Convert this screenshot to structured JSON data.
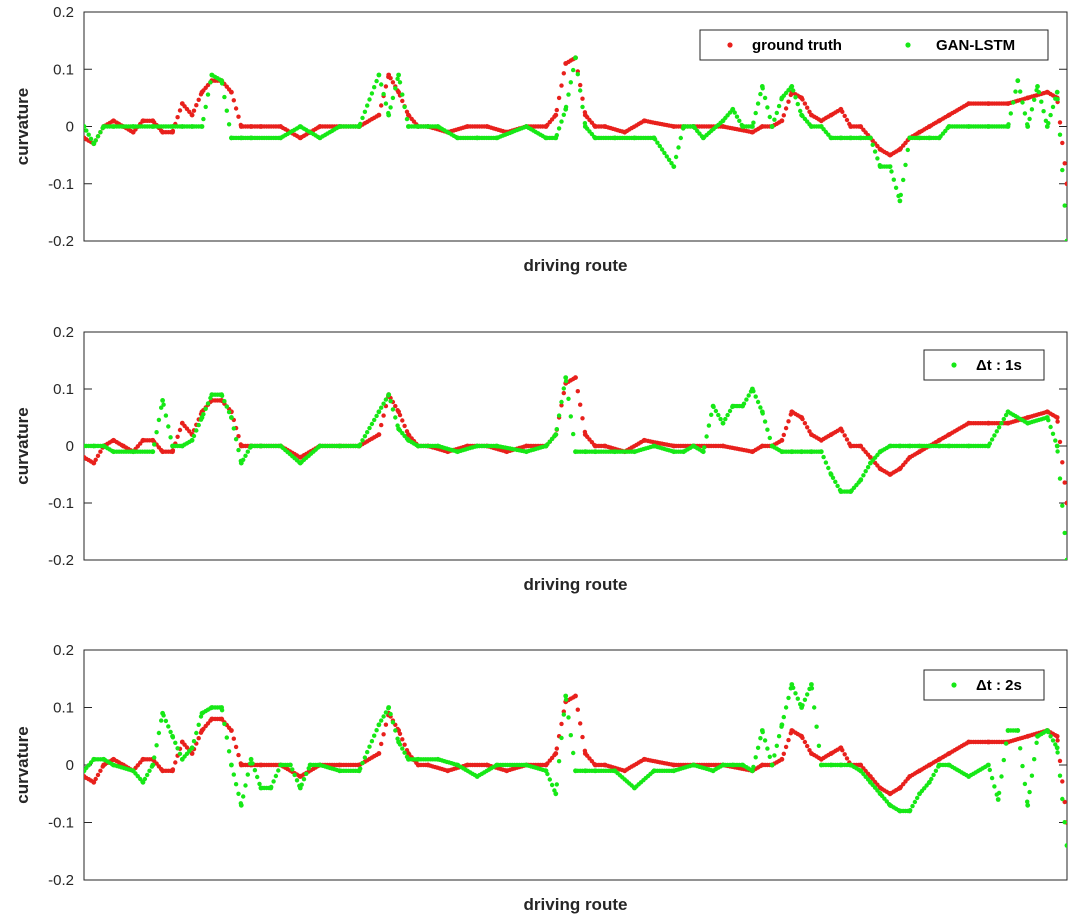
{
  "colors": {
    "ground_truth": "#e8201c",
    "prediction": "#16e816",
    "axis": "#262626"
  },
  "chart_data": [
    {
      "type": "scatter",
      "xlabel": "driving route",
      "ylabel": "curvature",
      "xlim": [
        0,
        1
      ],
      "ylim": [
        -0.2,
        0.2
      ],
      "yticks": [
        "0.2",
        "0.1",
        "0",
        "-0.1",
        "-0.2"
      ],
      "grid": false,
      "legend_position": "top-right",
      "series": [
        {
          "name": "ground truth",
          "color": "#e8201c",
          "x": [
            0.0,
            0.01,
            0.02,
            0.03,
            0.04,
            0.05,
            0.06,
            0.07,
            0.08,
            0.09,
            0.1,
            0.11,
            0.12,
            0.13,
            0.14,
            0.15,
            0.16,
            0.17,
            0.18,
            0.2,
            0.22,
            0.24,
            0.26,
            0.28,
            0.3,
            0.31,
            0.32,
            0.33,
            0.34,
            0.35,
            0.37,
            0.39,
            0.41,
            0.43,
            0.45,
            0.47,
            0.48,
            0.49,
            0.5,
            0.51,
            0.52,
            0.53,
            0.55,
            0.57,
            0.6,
            0.62,
            0.65,
            0.68,
            0.69,
            0.7,
            0.71,
            0.72,
            0.73,
            0.74,
            0.75,
            0.76,
            0.77,
            0.78,
            0.79,
            0.8,
            0.81,
            0.82,
            0.83,
            0.84,
            0.85,
            0.86,
            0.87,
            0.88,
            0.9,
            0.92,
            0.94,
            0.96,
            0.98,
            0.99,
            1.0
          ],
          "y": [
            -0.02,
            -0.03,
            0.0,
            0.01,
            0.0,
            -0.01,
            0.01,
            0.01,
            -0.01,
            -0.01,
            0.04,
            0.02,
            0.06,
            0.08,
            0.08,
            0.06,
            0.0,
            0.0,
            0.0,
            0.0,
            -0.02,
            0.0,
            0.0,
            0.0,
            0.02,
            0.09,
            0.06,
            0.02,
            0.0,
            0.0,
            -0.01,
            0.0,
            0.0,
            -0.01,
            0.0,
            0.0,
            0.02,
            0.11,
            0.12,
            0.02,
            0.0,
            0.0,
            -0.01,
            0.01,
            0.0,
            0.0,
            0.0,
            -0.01,
            0.0,
            0.0,
            0.01,
            0.06,
            0.05,
            0.02,
            0.01,
            0.02,
            0.03,
            0.0,
            0.0,
            -0.02,
            -0.04,
            -0.05,
            -0.04,
            -0.02,
            -0.01,
            0.0,
            0.01,
            0.02,
            0.04,
            0.04,
            0.04,
            0.05,
            0.06,
            0.05,
            -0.1
          ]
        },
        {
          "name": "GAN-LSTM",
          "color": "#16e816",
          "x": [
            0.0,
            0.01,
            0.02,
            0.03,
            0.05,
            0.07,
            0.09,
            0.1,
            0.11,
            0.12,
            0.13,
            0.14,
            0.15,
            0.16,
            0.17,
            0.2,
            0.22,
            0.24,
            0.26,
            0.28,
            0.3,
            0.31,
            0.32,
            0.33,
            0.34,
            0.35,
            0.36,
            0.38,
            0.4,
            0.42,
            0.45,
            0.47,
            0.48,
            0.49,
            0.5,
            0.51,
            0.52,
            0.54,
            0.56,
            0.58,
            0.6,
            0.61,
            0.62,
            0.63,
            0.65,
            0.66,
            0.67,
            0.68,
            0.69,
            0.7,
            0.71,
            0.72,
            0.73,
            0.74,
            0.75,
            0.76,
            0.77,
            0.78,
            0.79,
            0.8,
            0.81,
            0.82,
            0.83,
            0.84,
            0.85,
            0.86,
            0.87,
            0.88,
            0.9,
            0.92,
            0.94,
            0.95,
            0.96,
            0.97,
            0.98,
            0.99,
            1.0
          ],
          "y": [
            0.0,
            -0.03,
            0.0,
            0.0,
            0.0,
            0.0,
            0.0,
            0.0,
            0.0,
            0.0,
            0.09,
            0.08,
            -0.02,
            -0.02,
            -0.02,
            -0.02,
            0.0,
            -0.02,
            0.0,
            0.0,
            0.09,
            0.02,
            0.09,
            0.0,
            0.0,
            0.0,
            0.0,
            -0.02,
            -0.02,
            -0.02,
            0.0,
            -0.02,
            -0.02,
            0.03,
            0.12,
            0.0,
            -0.02,
            -0.02,
            -0.02,
            -0.02,
            -0.07,
            0.0,
            0.0,
            -0.02,
            0.01,
            0.03,
            0.0,
            0.0,
            0.07,
            0.0,
            0.05,
            0.07,
            0.02,
            0.0,
            0.0,
            -0.02,
            -0.02,
            -0.02,
            -0.02,
            -0.02,
            -0.07,
            -0.07,
            -0.13,
            -0.02,
            -0.02,
            -0.02,
            -0.02,
            0.0,
            0.0,
            0.0,
            0.0,
            0.08,
            0.0,
            0.07,
            0.0,
            0.06,
            -0.2
          ]
        }
      ]
    },
    {
      "type": "scatter",
      "xlabel": "driving route",
      "ylabel": "curvature",
      "xlim": [
        0,
        1
      ],
      "ylim": [
        -0.2,
        0.2
      ],
      "yticks": [
        "0.2",
        "0.1",
        "0",
        "-0.1",
        "-0.2"
      ],
      "grid": false,
      "legend_position": "top-right",
      "series": [
        {
          "name": "",
          "color": "#e8201c",
          "x": [
            0.0,
            0.01,
            0.02,
            0.03,
            0.04,
            0.05,
            0.06,
            0.07,
            0.08,
            0.09,
            0.1,
            0.11,
            0.12,
            0.13,
            0.14,
            0.15,
            0.16,
            0.17,
            0.18,
            0.2,
            0.22,
            0.24,
            0.26,
            0.28,
            0.3,
            0.31,
            0.32,
            0.33,
            0.34,
            0.35,
            0.37,
            0.39,
            0.41,
            0.43,
            0.45,
            0.47,
            0.48,
            0.49,
            0.5,
            0.51,
            0.52,
            0.53,
            0.55,
            0.57,
            0.6,
            0.62,
            0.65,
            0.68,
            0.69,
            0.7,
            0.71,
            0.72,
            0.73,
            0.74,
            0.75,
            0.76,
            0.77,
            0.78,
            0.79,
            0.8,
            0.81,
            0.82,
            0.83,
            0.84,
            0.85,
            0.86,
            0.87,
            0.88,
            0.9,
            0.92,
            0.94,
            0.96,
            0.98,
            0.99,
            1.0
          ],
          "y": [
            -0.02,
            -0.03,
            0.0,
            0.01,
            0.0,
            -0.01,
            0.01,
            0.01,
            -0.01,
            -0.01,
            0.04,
            0.02,
            0.06,
            0.08,
            0.08,
            0.06,
            0.0,
            0.0,
            0.0,
            0.0,
            -0.02,
            0.0,
            0.0,
            0.0,
            0.02,
            0.09,
            0.06,
            0.02,
            0.0,
            0.0,
            -0.01,
            0.0,
            0.0,
            -0.01,
            0.0,
            0.0,
            0.02,
            0.11,
            0.12,
            0.02,
            0.0,
            0.0,
            -0.01,
            0.01,
            0.0,
            0.0,
            0.0,
            -0.01,
            0.0,
            0.0,
            0.01,
            0.06,
            0.05,
            0.02,
            0.01,
            0.02,
            0.03,
            0.0,
            0.0,
            -0.02,
            -0.04,
            -0.05,
            -0.04,
            -0.02,
            -0.01,
            0.0,
            0.01,
            0.02,
            0.04,
            0.04,
            0.04,
            0.05,
            0.06,
            0.05,
            -0.1
          ]
        },
        {
          "name": "Δt : 1s",
          "color": "#16e816",
          "x": [
            0.0,
            0.01,
            0.02,
            0.03,
            0.05,
            0.07,
            0.08,
            0.09,
            0.1,
            0.11,
            0.12,
            0.13,
            0.14,
            0.15,
            0.16,
            0.17,
            0.18,
            0.2,
            0.22,
            0.24,
            0.26,
            0.28,
            0.3,
            0.31,
            0.32,
            0.33,
            0.34,
            0.36,
            0.38,
            0.4,
            0.42,
            0.45,
            0.47,
            0.48,
            0.49,
            0.5,
            0.51,
            0.52,
            0.54,
            0.56,
            0.58,
            0.6,
            0.61,
            0.62,
            0.63,
            0.64,
            0.65,
            0.66,
            0.67,
            0.68,
            0.69,
            0.7,
            0.71,
            0.72,
            0.73,
            0.74,
            0.75,
            0.76,
            0.77,
            0.78,
            0.79,
            0.8,
            0.81,
            0.82,
            0.83,
            0.84,
            0.85,
            0.86,
            0.87,
            0.88,
            0.9,
            0.92,
            0.94,
            0.96,
            0.98,
            0.99,
            1.0
          ],
          "y": [
            0.0,
            0.0,
            0.0,
            -0.01,
            -0.01,
            -0.01,
            0.08,
            0.0,
            0.0,
            0.01,
            0.05,
            0.09,
            0.09,
            0.05,
            -0.03,
            0.0,
            0.0,
            0.0,
            -0.03,
            0.0,
            0.0,
            0.0,
            0.06,
            0.09,
            0.03,
            0.01,
            0.0,
            0.0,
            -0.01,
            0.0,
            0.0,
            -0.01,
            0.0,
            0.02,
            0.12,
            -0.01,
            -0.01,
            -0.01,
            -0.01,
            -0.01,
            0.0,
            -0.01,
            -0.01,
            0.0,
            -0.01,
            0.07,
            0.04,
            0.07,
            0.07,
            0.1,
            0.06,
            0.0,
            -0.01,
            -0.01,
            -0.01,
            -0.01,
            -0.01,
            -0.05,
            -0.08,
            -0.08,
            -0.06,
            -0.03,
            -0.01,
            0.0,
            0.0,
            0.0,
            0.0,
            0.0,
            0.0,
            0.0,
            0.0,
            0.0,
            0.06,
            0.04,
            0.05,
            0.0,
            -0.2
          ]
        }
      ]
    },
    {
      "type": "scatter",
      "xlabel": "driving route",
      "ylabel": "curvature",
      "xlim": [
        0,
        1
      ],
      "ylim": [
        -0.2,
        0.2
      ],
      "yticks": [
        "0.2",
        "0.1",
        "0",
        "-0.1",
        "-0.2"
      ],
      "grid": false,
      "legend_position": "top-right",
      "series": [
        {
          "name": "",
          "color": "#e8201c",
          "x": [
            0.0,
            0.01,
            0.02,
            0.03,
            0.04,
            0.05,
            0.06,
            0.07,
            0.08,
            0.09,
            0.1,
            0.11,
            0.12,
            0.13,
            0.14,
            0.15,
            0.16,
            0.17,
            0.18,
            0.2,
            0.22,
            0.24,
            0.26,
            0.28,
            0.3,
            0.31,
            0.32,
            0.33,
            0.34,
            0.35,
            0.37,
            0.39,
            0.41,
            0.43,
            0.45,
            0.47,
            0.48,
            0.49,
            0.5,
            0.51,
            0.52,
            0.53,
            0.55,
            0.57,
            0.6,
            0.62,
            0.65,
            0.68,
            0.69,
            0.7,
            0.71,
            0.72,
            0.73,
            0.74,
            0.75,
            0.76,
            0.77,
            0.78,
            0.79,
            0.8,
            0.81,
            0.82,
            0.83,
            0.84,
            0.85,
            0.86,
            0.87,
            0.88,
            0.9,
            0.92,
            0.94,
            0.96,
            0.98,
            0.99,
            1.0
          ],
          "y": [
            -0.02,
            -0.03,
            0.0,
            0.01,
            0.0,
            -0.01,
            0.01,
            0.01,
            -0.01,
            -0.01,
            0.04,
            0.02,
            0.06,
            0.08,
            0.08,
            0.06,
            0.0,
            0.0,
            0.0,
            0.0,
            -0.02,
            0.0,
            0.0,
            0.0,
            0.02,
            0.09,
            0.06,
            0.02,
            0.0,
            0.0,
            -0.01,
            0.0,
            0.0,
            -0.01,
            0.0,
            0.0,
            0.02,
            0.11,
            0.12,
            0.02,
            0.0,
            0.0,
            -0.01,
            0.01,
            0.0,
            0.0,
            0.0,
            -0.01,
            0.0,
            0.0,
            0.01,
            0.06,
            0.05,
            0.02,
            0.01,
            0.02,
            0.03,
            0.0,
            0.0,
            -0.02,
            -0.04,
            -0.05,
            -0.04,
            -0.02,
            -0.01,
            0.0,
            0.01,
            0.02,
            0.04,
            0.04,
            0.04,
            0.05,
            0.06,
            0.05,
            -0.1
          ]
        },
        {
          "name": "Δt : 2s",
          "color": "#16e816",
          "x": [
            0.0,
            0.01,
            0.02,
            0.03,
            0.05,
            0.06,
            0.07,
            0.08,
            0.09,
            0.1,
            0.11,
            0.12,
            0.13,
            0.14,
            0.15,
            0.16,
            0.17,
            0.18,
            0.19,
            0.2,
            0.21,
            0.22,
            0.23,
            0.24,
            0.26,
            0.28,
            0.3,
            0.31,
            0.32,
            0.33,
            0.34,
            0.36,
            0.38,
            0.4,
            0.42,
            0.45,
            0.47,
            0.48,
            0.49,
            0.5,
            0.51,
            0.52,
            0.54,
            0.56,
            0.58,
            0.6,
            0.62,
            0.64,
            0.65,
            0.66,
            0.67,
            0.68,
            0.69,
            0.7,
            0.71,
            0.72,
            0.73,
            0.74,
            0.75,
            0.76,
            0.77,
            0.78,
            0.79,
            0.8,
            0.81,
            0.82,
            0.83,
            0.84,
            0.85,
            0.86,
            0.87,
            0.88,
            0.9,
            0.92,
            0.93,
            0.94,
            0.95,
            0.96,
            0.97,
            0.98,
            0.99,
            1.0
          ],
          "y": [
            -0.01,
            0.01,
            0.01,
            0.0,
            -0.01,
            -0.03,
            0.0,
            0.09,
            0.05,
            0.01,
            0.03,
            0.09,
            0.1,
            0.1,
            0.0,
            -0.07,
            0.01,
            -0.04,
            -0.04,
            0.0,
            0.0,
            -0.04,
            0.0,
            0.0,
            -0.01,
            -0.01,
            0.07,
            0.1,
            0.04,
            0.01,
            0.01,
            0.01,
            0.0,
            -0.02,
            0.0,
            0.0,
            -0.01,
            -0.05,
            0.12,
            -0.01,
            -0.01,
            -0.01,
            -0.01,
            -0.04,
            -0.01,
            -0.01,
            0.0,
            -0.01,
            0.0,
            0.0,
            0.0,
            -0.01,
            0.06,
            0.0,
            0.07,
            0.14,
            0.1,
            0.14,
            0.0,
            0.0,
            0.0,
            0.0,
            -0.01,
            -0.03,
            -0.05,
            -0.07,
            -0.08,
            -0.08,
            -0.05,
            -0.03,
            0.0,
            0.0,
            -0.02,
            0.0,
            -0.06,
            0.06,
            0.06,
            -0.07,
            0.05,
            0.06,
            0.03,
            -0.14
          ]
        }
      ]
    }
  ]
}
